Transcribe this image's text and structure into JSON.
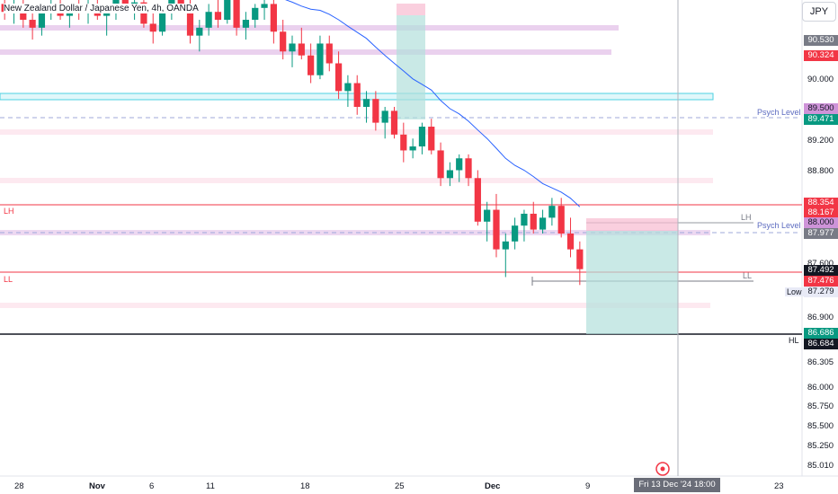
{
  "header": {
    "title": "New Zealand Dollar / Japanese Yen, 4h, OANDA",
    "currency": "JPY"
  },
  "price_axis": {
    "ticks": [
      "90.000",
      "89.200",
      "88.800",
      "87.600",
      "86.900",
      "86.305",
      "86.000",
      "85.750",
      "85.500",
      "85.250",
      "85.010"
    ]
  },
  "price_tags": [
    {
      "value": "90.530",
      "color": "#787b86"
    },
    {
      "value": "90.324",
      "color": "#f23645"
    },
    {
      "value": "89.500",
      "color": "#ce93d8"
    },
    {
      "value": "89.471",
      "color": "#089981"
    },
    {
      "value": "88.354",
      "color": "#f23645"
    },
    {
      "value": "88.167",
      "color": "#f23645"
    },
    {
      "value": "88.000",
      "color": "#ce93d8"
    },
    {
      "value": "87.977",
      "color": "#787b86"
    },
    {
      "value": "87.492",
      "color": "#131722"
    },
    {
      "value": "87.476",
      "color": "#f23645"
    },
    {
      "value": "87.279",
      "color": "#e8eaf6"
    },
    {
      "value": "86.686",
      "color": "#089981"
    },
    {
      "value": "86.684",
      "color": "#131722"
    }
  ],
  "time_axis": {
    "ticks": [
      {
        "label": "28",
        "bold": false
      },
      {
        "label": "Nov",
        "bold": true
      },
      {
        "label": "6",
        "bold": false
      },
      {
        "label": "11",
        "bold": false
      },
      {
        "label": "18",
        "bold": false
      },
      {
        "label": "25",
        "bold": false
      },
      {
        "label": "Dec",
        "bold": true
      },
      {
        "label": "9",
        "bold": false
      },
      {
        "label": "23",
        "bold": false
      }
    ],
    "crosshair_date": "Fri 13 Dec '24   18:00"
  },
  "annotations": {
    "lh_left": "LH",
    "ll_left": "LL",
    "lh_right": "LH",
    "ll_right": "LL",
    "psych_level_1": "Psych Level",
    "psych_level_2": "Psych Level",
    "low_label": "Low",
    "hl_label": "HL"
  },
  "colors": {
    "up": "#089981",
    "down": "#f23645",
    "ma": "#2962ff",
    "zone_purple": "#e1bee7",
    "zone_pink": "#fce4ec",
    "zone_cyan": "#4dd0e1"
  },
  "chart_data": {
    "type": "candlestick",
    "symbol": "NZDJPY",
    "timeframe": "4h",
    "y_range": [
      84.95,
      90.85
    ],
    "price_levels": {
      "resistance_1": 90.53,
      "resistance_2": 90.324,
      "psych_upper": 89.5,
      "psych_lower": 88.0,
      "lh": 88.354,
      "ll": 87.476,
      "hl": 86.684,
      "low": 87.279,
      "last": 87.492
    },
    "candles": [
      [
        90.8,
        90.9,
        90.6,
        90.7
      ],
      [
        90.7,
        90.85,
        90.55,
        90.8
      ],
      [
        90.8,
        90.9,
        90.5,
        90.6
      ],
      [
        90.6,
        90.75,
        90.35,
        90.5
      ],
      [
        90.5,
        90.8,
        90.4,
        90.7
      ],
      [
        90.7,
        90.85,
        90.6,
        90.75
      ],
      [
        90.75,
        90.9,
        90.6,
        90.65
      ],
      [
        90.65,
        90.8,
        90.5,
        90.78
      ],
      [
        90.78,
        90.9,
        90.6,
        90.7
      ],
      [
        90.7,
        90.85,
        90.55,
        90.8
      ],
      [
        90.8,
        90.9,
        90.6,
        90.65
      ],
      [
        90.65,
        90.8,
        90.4,
        90.72
      ],
      [
        90.72,
        90.9,
        90.6,
        90.85
      ],
      [
        90.85,
        90.9,
        90.7,
        90.78
      ],
      [
        90.78,
        90.9,
        90.6,
        90.82
      ],
      [
        90.82,
        90.9,
        90.5,
        90.55
      ],
      [
        90.55,
        90.7,
        90.3,
        90.45
      ],
      [
        90.45,
        90.8,
        90.4,
        90.7
      ],
      [
        90.7,
        90.9,
        90.6,
        90.85
      ],
      [
        90.85,
        90.9,
        90.7,
        90.8
      ],
      [
        90.8,
        90.9,
        90.3,
        90.4
      ],
      [
        90.4,
        90.6,
        90.2,
        90.5
      ],
      [
        90.5,
        90.8,
        90.4,
        90.7
      ],
      [
        90.7,
        90.9,
        90.5,
        90.6
      ],
      [
        90.6,
        90.9,
        90.55,
        90.85
      ],
      [
        90.85,
        90.9,
        90.4,
        90.5
      ],
      [
        90.5,
        90.7,
        90.35,
        90.6
      ],
      [
        90.6,
        90.8,
        90.5,
        90.75
      ],
      [
        90.75,
        90.9,
        90.6,
        90.8
      ],
      [
        90.8,
        90.9,
        90.3,
        90.45
      ],
      [
        90.45,
        90.6,
        90.1,
        90.2
      ],
      [
        90.2,
        90.4,
        90.0,
        90.3
      ],
      [
        90.3,
        90.5,
        90.1,
        90.15
      ],
      [
        90.15,
        90.3,
        89.8,
        89.9
      ],
      [
        89.9,
        90.4,
        89.85,
        90.3
      ],
      [
        90.3,
        90.4,
        89.95,
        90.05
      ],
      [
        90.05,
        90.2,
        89.6,
        89.7
      ],
      [
        89.7,
        89.9,
        89.5,
        89.8
      ],
      [
        89.8,
        89.9,
        89.4,
        89.5
      ],
      [
        89.5,
        89.7,
        89.3,
        89.6
      ],
      [
        89.6,
        89.7,
        89.2,
        89.3
      ],
      [
        89.3,
        89.5,
        89.1,
        89.45
      ],
      [
        89.45,
        89.5,
        89.1,
        89.15
      ],
      [
        89.15,
        89.3,
        88.8,
        88.95
      ],
      [
        88.95,
        89.1,
        88.85,
        89.0
      ],
      [
        89.0,
        89.3,
        88.9,
        89.25
      ],
      [
        89.25,
        89.35,
        88.9,
        88.95
      ],
      [
        88.95,
        89.05,
        88.5,
        88.6
      ],
      [
        88.6,
        88.8,
        88.5,
        88.7
      ],
      [
        88.7,
        88.9,
        88.55,
        88.85
      ],
      [
        88.85,
        88.9,
        88.5,
        88.6
      ],
      [
        88.6,
        88.7,
        88.0,
        88.05
      ],
      [
        88.05,
        88.3,
        87.8,
        88.2
      ],
      [
        88.2,
        88.4,
        87.6,
        87.7
      ],
      [
        87.7,
        87.9,
        87.35,
        87.8
      ],
      [
        87.8,
        88.1,
        87.7,
        88.0
      ],
      [
        88.0,
        88.2,
        87.8,
        88.15
      ],
      [
        88.15,
        88.3,
        87.9,
        87.95
      ],
      [
        87.95,
        88.2,
        87.9,
        88.1
      ],
      [
        88.1,
        88.35,
        88.0,
        88.25
      ],
      [
        88.25,
        88.35,
        87.85,
        87.9
      ],
      [
        87.9,
        88.1,
        87.6,
        87.7
      ],
      [
        87.7,
        87.8,
        87.25,
        87.45
      ]
    ],
    "moving_average_visible": true
  }
}
